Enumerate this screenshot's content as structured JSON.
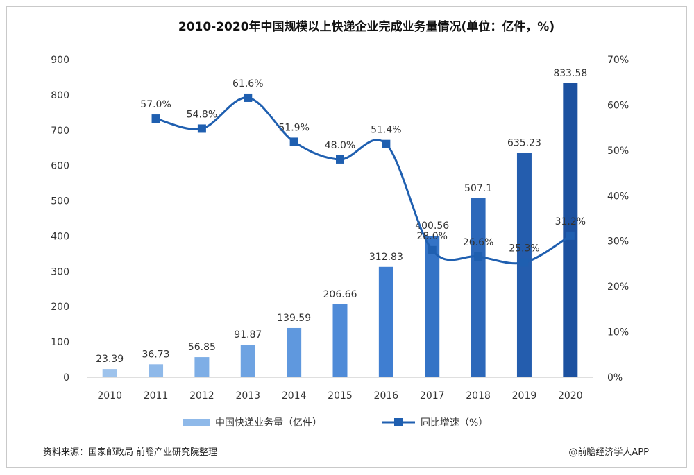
{
  "chart_data": {
    "type": "bar",
    "title": "2010-2020年中国规模以上快递企业完成业务量情况(单位：亿件，%)",
    "categories": [
      "2010",
      "2011",
      "2012",
      "2013",
      "2014",
      "2015",
      "2016",
      "2017",
      "2018",
      "2019",
      "2020"
    ],
    "series": [
      {
        "name": "中国快递业务量（亿件）",
        "type": "bar",
        "axis": "left",
        "values": [
          23.39,
          36.73,
          56.85,
          91.87,
          139.59,
          206.66,
          312.83,
          400.56,
          507.1,
          635.23,
          833.58
        ],
        "labels": [
          "23.39",
          "36.73",
          "56.85",
          "91.87",
          "139.59",
          "206.66",
          "312.83",
          "400.56",
          "507.1",
          "635.23",
          "833.58"
        ]
      },
      {
        "name": "同比增速（%）",
        "type": "line",
        "axis": "right",
        "values": [
          null,
          57.0,
          54.8,
          61.6,
          51.9,
          48.0,
          51.4,
          28.0,
          26.6,
          25.3,
          31.2
        ],
        "labels": [
          "",
          "57.0%",
          "54.8%",
          "61.6%",
          "51.9%",
          "48.0%",
          "51.4%",
          "28.0%",
          "26.6%",
          "25.3%",
          "31.2%"
        ]
      }
    ],
    "yleft": {
      "min": 0,
      "max": 900,
      "ticks": [
        "0",
        "100",
        "200",
        "300",
        "400",
        "500",
        "600",
        "700",
        "800",
        "900"
      ]
    },
    "yright": {
      "min": 0,
      "max": 70,
      "ticks": [
        "0%",
        "10%",
        "20%",
        "30%",
        "40%",
        "50%",
        "60%",
        "70%"
      ]
    },
    "legend_position": "bottom-center",
    "grid": false,
    "colors": {
      "bar_colors": [
        "#9ec3ec",
        "#8fb9e9",
        "#7eaee6",
        "#6ea3e2",
        "#5f98de",
        "#4f8bd8",
        "#3f7ed1",
        "#3473c6",
        "#2c68ba",
        "#245dae",
        "#1c51a0"
      ],
      "line": "#1f5fb0",
      "marker": "#1f5fb0"
    }
  },
  "footer": {
    "source": "资料来源：国家邮政局 前瞻产业研究院整理",
    "brand": "@前瞻经济学人APP"
  }
}
